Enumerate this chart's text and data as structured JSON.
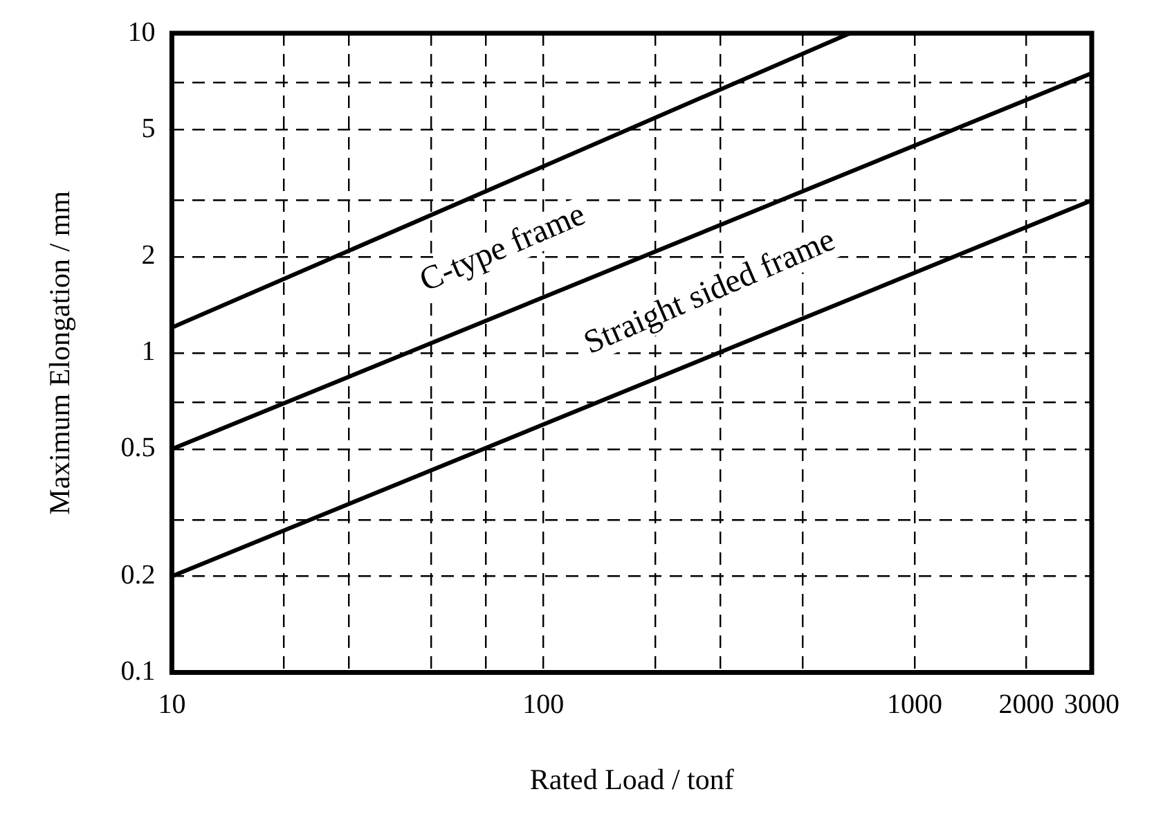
{
  "chart_data": {
    "type": "line",
    "xlabel": "Rated Load / tonf",
    "ylabel": "Maximum Elongation / mm",
    "log": "xy",
    "xlim": [
      10,
      3000
    ],
    "ylim": [
      0.1,
      10
    ],
    "xticks": [
      10,
      {
        "value": 20,
        "label": null
      },
      {
        "value": 30,
        "label": null
      },
      {
        "value": 50,
        "label": null
      },
      {
        "value": 70,
        "label": null
      },
      100,
      {
        "value": 200,
        "label": null
      },
      {
        "value": 300,
        "label": null
      },
      {
        "value": 500,
        "label": null
      },
      1000,
      2000,
      3000
    ],
    "yticks": [
      0.1,
      0.2,
      {
        "value": 0.3,
        "label": null
      },
      0.5,
      {
        "value": 0.7,
        "label": null
      },
      1,
      2,
      {
        "value": 3,
        "label": null
      },
      5,
      {
        "value": 7,
        "label": null
      },
      10
    ],
    "series": [
      {
        "color": "#000000",
        "x": [
          10,
          670
        ],
        "values": [
          1.2,
          10
        ]
      },
      {
        "color": "#000000",
        "x": [
          10,
          3000
        ],
        "values": [
          0.5,
          7.5
        ]
      },
      {
        "color": "#000000",
        "x": [
          10,
          3000
        ],
        "values": [
          0.2,
          3
        ]
      }
    ],
    "annotations": [
      "C-type frame",
      "Straight sided frame"
    ],
    "grid": true,
    "legend": false,
    "marker": "none",
    "line_style": "solid"
  }
}
